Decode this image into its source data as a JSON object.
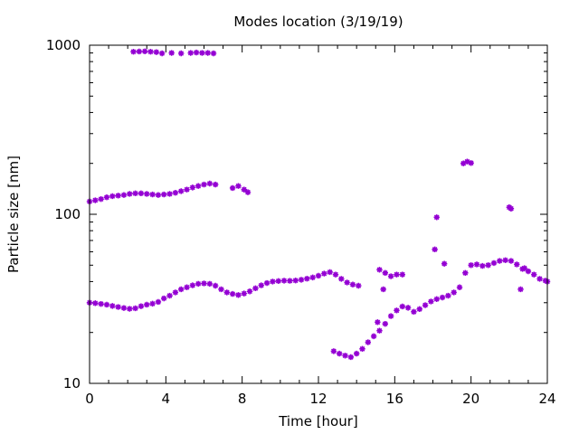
{
  "chart_data": {
    "type": "scatter",
    "title": "Modes location (3/19/19)",
    "xlabel": "Time [hour]",
    "ylabel": "Particle size [nm]",
    "xlim": [
      0,
      24
    ],
    "ylim": [
      10,
      1000
    ],
    "yscale": "log",
    "grid": false,
    "legend": "none",
    "x_ticks": [
      0,
      4,
      8,
      12,
      16,
      20,
      24
    ],
    "x_tick_labels": [
      "0",
      "4",
      "8",
      "12",
      "16",
      "20",
      "24"
    ],
    "y_ticks": [
      10,
      100,
      1000
    ],
    "y_tick_labels": [
      "10",
      "100",
      "1000"
    ],
    "marker_color": "#9400d3",
    "series": [
      {
        "points": [
          [
            0.0,
            30
          ],
          [
            0.3,
            29.8
          ],
          [
            0.6,
            29.5
          ],
          [
            0.9,
            29.2
          ],
          [
            1.2,
            28.7
          ],
          [
            1.5,
            28.3
          ],
          [
            1.8,
            27.9
          ],
          [
            2.1,
            27.6
          ],
          [
            2.4,
            27.8
          ],
          [
            2.7,
            28.6
          ],
          [
            3.0,
            29.2
          ],
          [
            3.3,
            29.6
          ],
          [
            3.6,
            30.3
          ],
          [
            3.9,
            31.8
          ],
          [
            4.2,
            33.0
          ],
          [
            4.5,
            34.5
          ],
          [
            4.8,
            36.0
          ],
          [
            5.1,
            37.0
          ],
          [
            5.4,
            38.0
          ],
          [
            5.7,
            38.8
          ],
          [
            6.0,
            39.0
          ],
          [
            6.3,
            38.8
          ],
          [
            6.6,
            37.8
          ],
          [
            6.9,
            36.0
          ],
          [
            7.2,
            34.5
          ],
          [
            7.5,
            33.8
          ],
          [
            7.8,
            33.3
          ],
          [
            8.1,
            34.0
          ],
          [
            8.4,
            35.0
          ],
          [
            8.7,
            36.5
          ],
          [
            9.0,
            38.0
          ],
          [
            9.3,
            39.2
          ],
          [
            9.6,
            40.0
          ],
          [
            9.9,
            40.3
          ],
          [
            10.2,
            40.5
          ],
          [
            10.5,
            40.4
          ],
          [
            10.8,
            40.6
          ],
          [
            11.1,
            41.0
          ],
          [
            11.4,
            41.6
          ],
          [
            11.7,
            42.3
          ],
          [
            12.0,
            43.3
          ],
          [
            12.3,
            44.6
          ],
          [
            12.6,
            45.5
          ],
          [
            12.9,
            44.0
          ],
          [
            13.2,
            41.5
          ],
          [
            13.5,
            39.5
          ],
          [
            13.8,
            38.4
          ],
          [
            14.1,
            37.8
          ]
        ]
      },
      {
        "points": [
          [
            0.0,
            119
          ],
          [
            0.3,
            121
          ],
          [
            0.6,
            123
          ],
          [
            0.9,
            126
          ],
          [
            1.2,
            128
          ],
          [
            1.5,
            129
          ],
          [
            1.8,
            130
          ],
          [
            2.1,
            132
          ],
          [
            2.4,
            133
          ],
          [
            2.7,
            133
          ],
          [
            3.0,
            132
          ],
          [
            3.3,
            131
          ],
          [
            3.6,
            130
          ],
          [
            3.9,
            131
          ],
          [
            4.2,
            132
          ],
          [
            4.5,
            134
          ],
          [
            4.8,
            137
          ],
          [
            5.1,
            140
          ],
          [
            5.4,
            144
          ],
          [
            5.7,
            147
          ],
          [
            6.0,
            150
          ],
          [
            6.3,
            152
          ],
          [
            6.6,
            150
          ],
          [
            7.5,
            143
          ],
          [
            7.8,
            147
          ],
          [
            8.1,
            140
          ],
          [
            8.3,
            135
          ]
        ]
      },
      {
        "points": [
          [
            2.3,
            915
          ],
          [
            2.6,
            918
          ],
          [
            2.9,
            920
          ],
          [
            3.2,
            915
          ],
          [
            3.5,
            910
          ],
          [
            3.8,
            895
          ],
          [
            4.3,
            900
          ],
          [
            4.8,
            895
          ],
          [
            5.3,
            900
          ],
          [
            5.6,
            905
          ],
          [
            5.9,
            900
          ],
          [
            6.2,
            900
          ],
          [
            6.5,
            895
          ]
        ]
      },
      {
        "points": [
          [
            12.8,
            15.5
          ],
          [
            13.1,
            15.0
          ],
          [
            13.4,
            14.6
          ],
          [
            13.7,
            14.3
          ],
          [
            14.0,
            15.0
          ],
          [
            14.3,
            16.0
          ],
          [
            14.6,
            17.5
          ],
          [
            14.9,
            19.0
          ],
          [
            15.2,
            20.5
          ],
          [
            15.5,
            22.5
          ],
          [
            15.8,
            25.0
          ],
          [
            16.1,
            27.0
          ],
          [
            16.4,
            28.5
          ],
          [
            16.7,
            28.0
          ],
          [
            17.0,
            26.5
          ],
          [
            17.3,
            27.5
          ],
          [
            17.6,
            29.0
          ],
          [
            17.9,
            30.5
          ],
          [
            18.2,
            31.5
          ],
          [
            18.5,
            32.2
          ],
          [
            18.8,
            33.0
          ],
          [
            19.1,
            34.5
          ],
          [
            19.4,
            37.0
          ],
          [
            19.7,
            45.0
          ],
          [
            20.0,
            50.0
          ],
          [
            20.3,
            50.5
          ],
          [
            20.6,
            49.5
          ],
          [
            20.9,
            50.0
          ],
          [
            21.2,
            51.5
          ],
          [
            21.5,
            53.0
          ],
          [
            21.8,
            53.5
          ],
          [
            22.1,
            53.0
          ],
          [
            22.4,
            50.5
          ],
          [
            22.7,
            47.5
          ],
          [
            23.0,
            46.0
          ],
          [
            23.3,
            44.0
          ],
          [
            23.6,
            41.5
          ],
          [
            23.9,
            40.5
          ],
          [
            24.0,
            40.0
          ]
        ]
      },
      {
        "points": [
          [
            15.2,
            47
          ],
          [
            15.5,
            45
          ],
          [
            15.8,
            43
          ],
          [
            16.1,
            44
          ],
          [
            16.4,
            44
          ],
          [
            15.4,
            36
          ],
          [
            15.1,
            23
          ],
          [
            18.1,
            62
          ],
          [
            18.2,
            96
          ],
          [
            18.6,
            51
          ],
          [
            19.6,
            200
          ],
          [
            19.8,
            205
          ],
          [
            20.0,
            201
          ],
          [
            22.0,
            110
          ],
          [
            22.1,
            108
          ],
          [
            22.6,
            36
          ],
          [
            22.8,
            48
          ]
        ]
      }
    ]
  }
}
